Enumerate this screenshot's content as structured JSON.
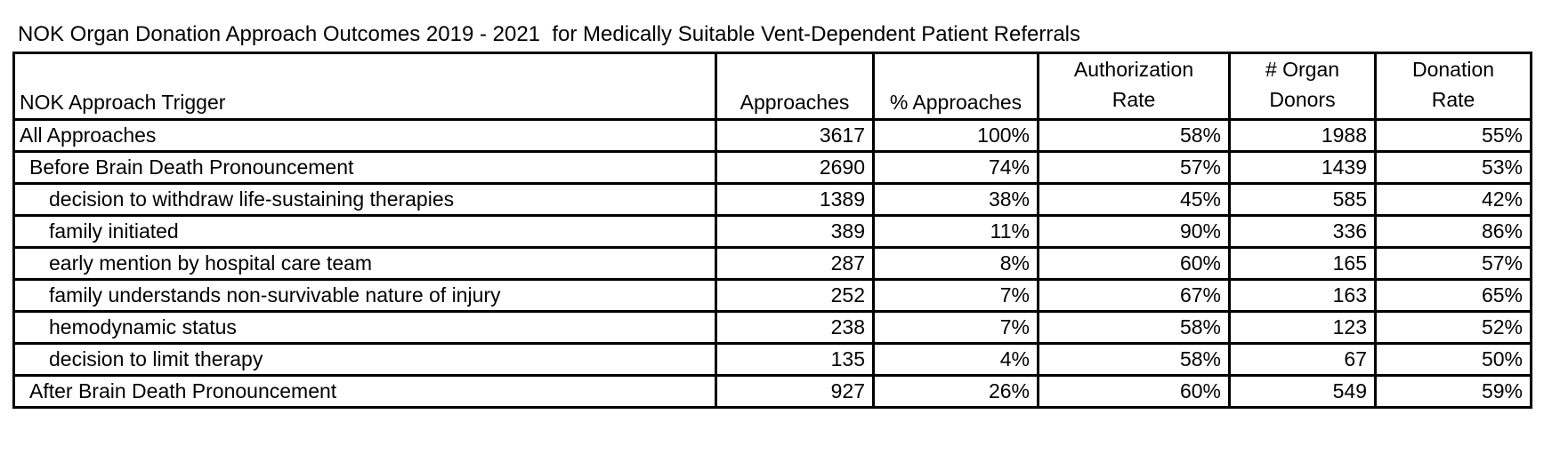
{
  "chart_data": {
    "type": "table",
    "title": "NOK Organ Donation Approach Outcomes 2019 - 2021  for Medically Suitable Vent-Dependent Patient Referrals",
    "columns": [
      "NOK Approach Trigger",
      "Approaches",
      "% Approaches",
      "Authorization Rate",
      "# Organ Donors",
      "Donation Rate"
    ],
    "headers": {
      "trigger": "NOK Approach Trigger",
      "approaches": "Approaches",
      "pct_approaches": "% Approaches",
      "authorization_line1": "Authorization",
      "authorization_line2": "Rate",
      "donors_line1": "# Organ",
      "donors_line2": "Donors",
      "donation_line1": "Donation",
      "donation_line2": "Rate"
    },
    "rows": [
      {
        "trigger": "All Approaches",
        "indent": 0,
        "approaches": "3617",
        "pct_approaches": "100%",
        "authorization_rate": "58%",
        "organ_donors": "1988",
        "donation_rate": "55%"
      },
      {
        "trigger": "Before Brain Death Pronouncement",
        "indent": 1,
        "approaches": "2690",
        "pct_approaches": "74%",
        "authorization_rate": "57%",
        "organ_donors": "1439",
        "donation_rate": "53%"
      },
      {
        "trigger": "decision to withdraw life-sustaining therapies",
        "indent": 2,
        "approaches": "1389",
        "pct_approaches": "38%",
        "authorization_rate": "45%",
        "organ_donors": "585",
        "donation_rate": "42%"
      },
      {
        "trigger": "family initiated",
        "indent": 2,
        "approaches": "389",
        "pct_approaches": "11%",
        "authorization_rate": "90%",
        "organ_donors": "336",
        "donation_rate": "86%"
      },
      {
        "trigger": "early mention by hospital care team",
        "indent": 2,
        "approaches": "287",
        "pct_approaches": "8%",
        "authorization_rate": "60%",
        "organ_donors": "165",
        "donation_rate": "57%"
      },
      {
        "trigger": "family understands non-survivable nature of injury",
        "indent": 2,
        "approaches": "252",
        "pct_approaches": "7%",
        "authorization_rate": "67%",
        "organ_donors": "163",
        "donation_rate": "65%"
      },
      {
        "trigger": "hemodynamic status",
        "indent": 2,
        "approaches": "238",
        "pct_approaches": "7%",
        "authorization_rate": "58%",
        "organ_donors": "123",
        "donation_rate": "52%"
      },
      {
        "trigger": "decision to limit therapy",
        "indent": 2,
        "approaches": "135",
        "pct_approaches": "4%",
        "authorization_rate": "58%",
        "organ_donors": "67",
        "donation_rate": "50%"
      },
      {
        "trigger": "After Brain Death Pronouncement",
        "indent": 1,
        "approaches": "927",
        "pct_approaches": "26%",
        "authorization_rate": "60%",
        "organ_donors": "549",
        "donation_rate": "59%"
      }
    ],
    "colors": {
      "border": "#000000",
      "text": "#000000",
      "background": "#ffffff"
    }
  }
}
